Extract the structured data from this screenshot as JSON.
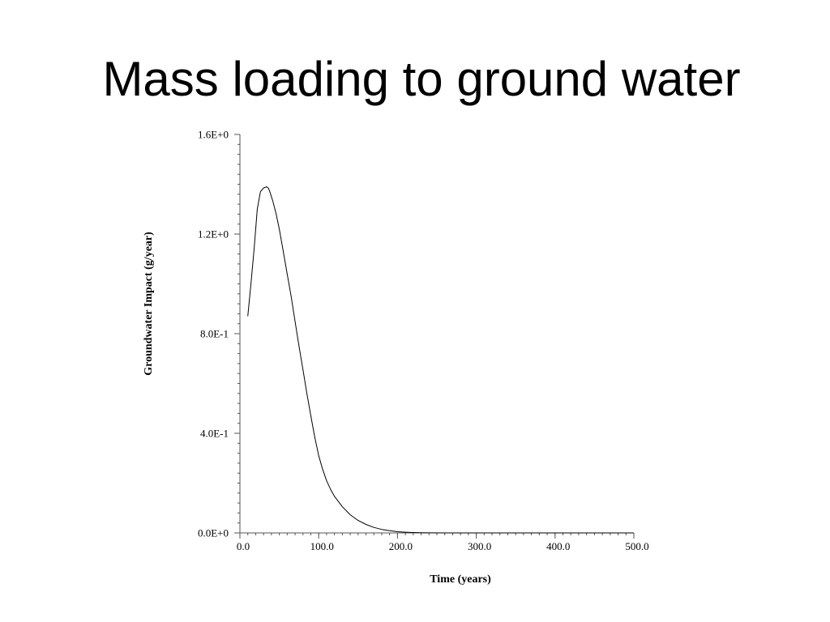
{
  "slide": {
    "title": "Mass loading to ground water"
  },
  "chart_data": {
    "type": "line",
    "title": "",
    "xlabel": "Time (years)",
    "ylabel": "Groundwater Impact (g/year)",
    "xlim": [
      0,
      500
    ],
    "ylim": [
      0,
      1.6
    ],
    "x_ticks": [
      {
        "value": 0,
        "label": "0.0"
      },
      {
        "value": 100,
        "label": "100.0"
      },
      {
        "value": 200,
        "label": "200.0"
      },
      {
        "value": 300,
        "label": "300.0"
      },
      {
        "value": 400,
        "label": "400.0"
      },
      {
        "value": 500,
        "label": "500.0"
      }
    ],
    "y_ticks": [
      {
        "value": 0,
        "label": "0.0E+0"
      },
      {
        "value": 0.4,
        "label": "4.0E-1"
      },
      {
        "value": 0.8,
        "label": "8.0E-1"
      },
      {
        "value": 1.2,
        "label": "1.2E+0"
      },
      {
        "value": 1.6,
        "label": "1.6E+0"
      }
    ],
    "x_minor_step": 10,
    "y_minor_step": 0.04,
    "grid": false,
    "legend": "none",
    "line_color": "#000000",
    "series": [
      {
        "x": [
          10,
          14,
          18,
          22,
          26,
          30,
          34,
          36,
          38,
          42,
          46,
          50,
          55,
          60,
          65,
          70,
          75,
          80,
          85,
          90,
          95,
          100,
          105,
          110,
          115,
          120,
          130,
          140,
          150,
          160,
          170,
          180,
          190,
          200,
          210,
          220,
          230,
          240,
          260,
          300,
          400,
          500
        ],
        "y": [
          0.87,
          1.0,
          1.14,
          1.3,
          1.37,
          1.385,
          1.39,
          1.385,
          1.37,
          1.33,
          1.28,
          1.22,
          1.13,
          1.04,
          0.95,
          0.85,
          0.75,
          0.655,
          0.56,
          0.47,
          0.385,
          0.31,
          0.255,
          0.21,
          0.175,
          0.147,
          0.105,
          0.073,
          0.05,
          0.034,
          0.022,
          0.014,
          0.009,
          0.005,
          0.003,
          0.0015,
          0.0008,
          0.0004,
          0.0001,
          0,
          0,
          0
        ]
      }
    ]
  }
}
